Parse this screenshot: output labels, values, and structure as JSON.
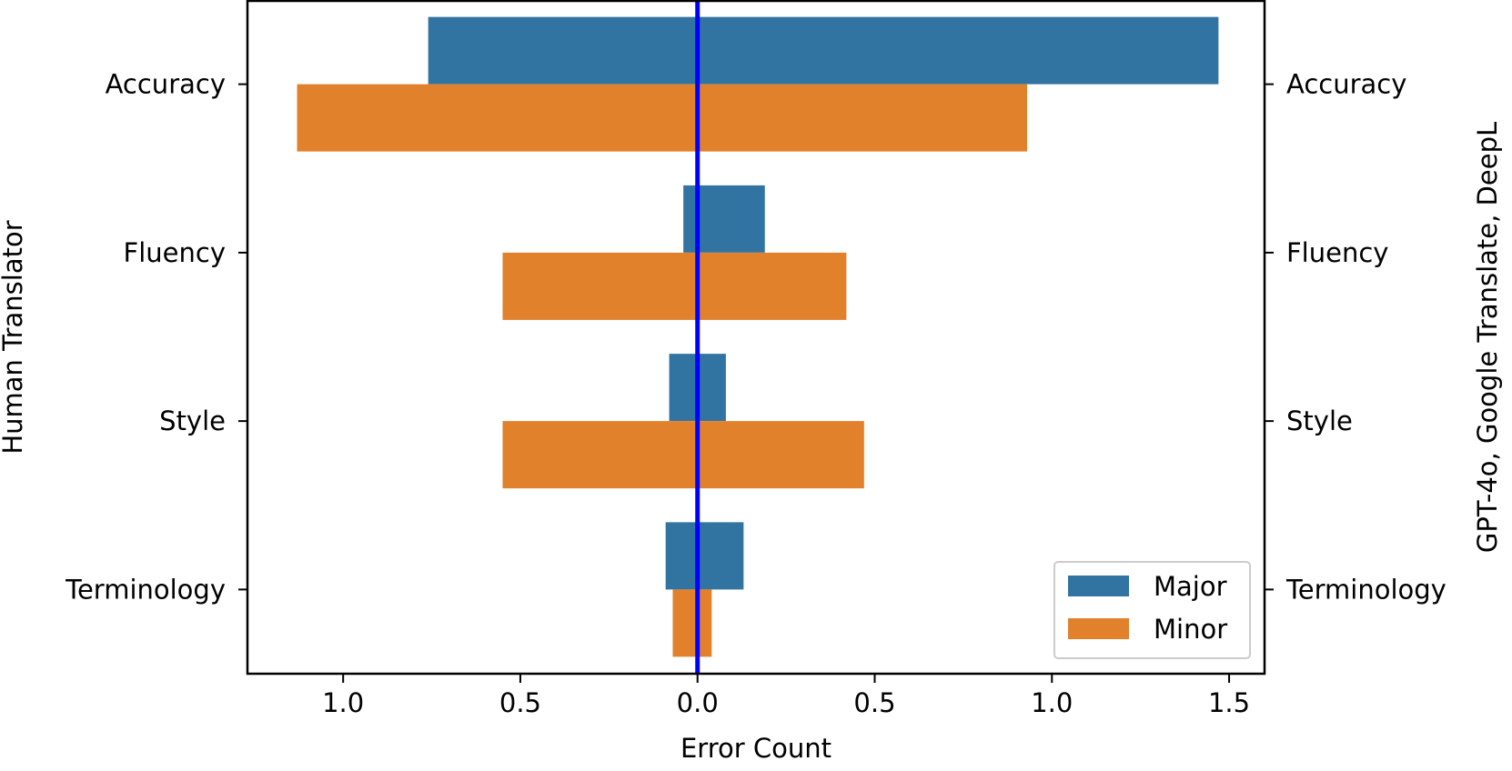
{
  "chart_data": {
    "type": "bar",
    "orientation": "horizontal-diverging",
    "categories": [
      "Accuracy",
      "Fluency",
      "Style",
      "Terminology"
    ],
    "series": [
      {
        "name": "Major",
        "color": "#3274a1",
        "left_values": [
          0.76,
          0.04,
          0.08,
          0.09
        ],
        "right_values": [
          1.47,
          0.19,
          0.08,
          0.13
        ]
      },
      {
        "name": "Minor",
        "color": "#e1812c",
        "left_values": [
          1.13,
          0.55,
          0.55,
          0.07
        ],
        "right_values": [
          0.93,
          0.42,
          0.47,
          0.04
        ]
      }
    ],
    "left_label": "Human Translator",
    "right_label": "GPT-4o, Google Translate, DeepL",
    "xlabel": "Error Count",
    "xlim": [
      -1.27,
      1.6
    ],
    "x_ticks": [
      -1.0,
      -0.5,
      0.0,
      0.5,
      1.0,
      1.5
    ],
    "x_tick_labels": [
      "1.0",
      "0.5",
      "0.0",
      "0.5",
      "1.0",
      "1.5"
    ],
    "zero_line_color": "#0000ff",
    "legend_position": "lower-right",
    "grid": false
  }
}
